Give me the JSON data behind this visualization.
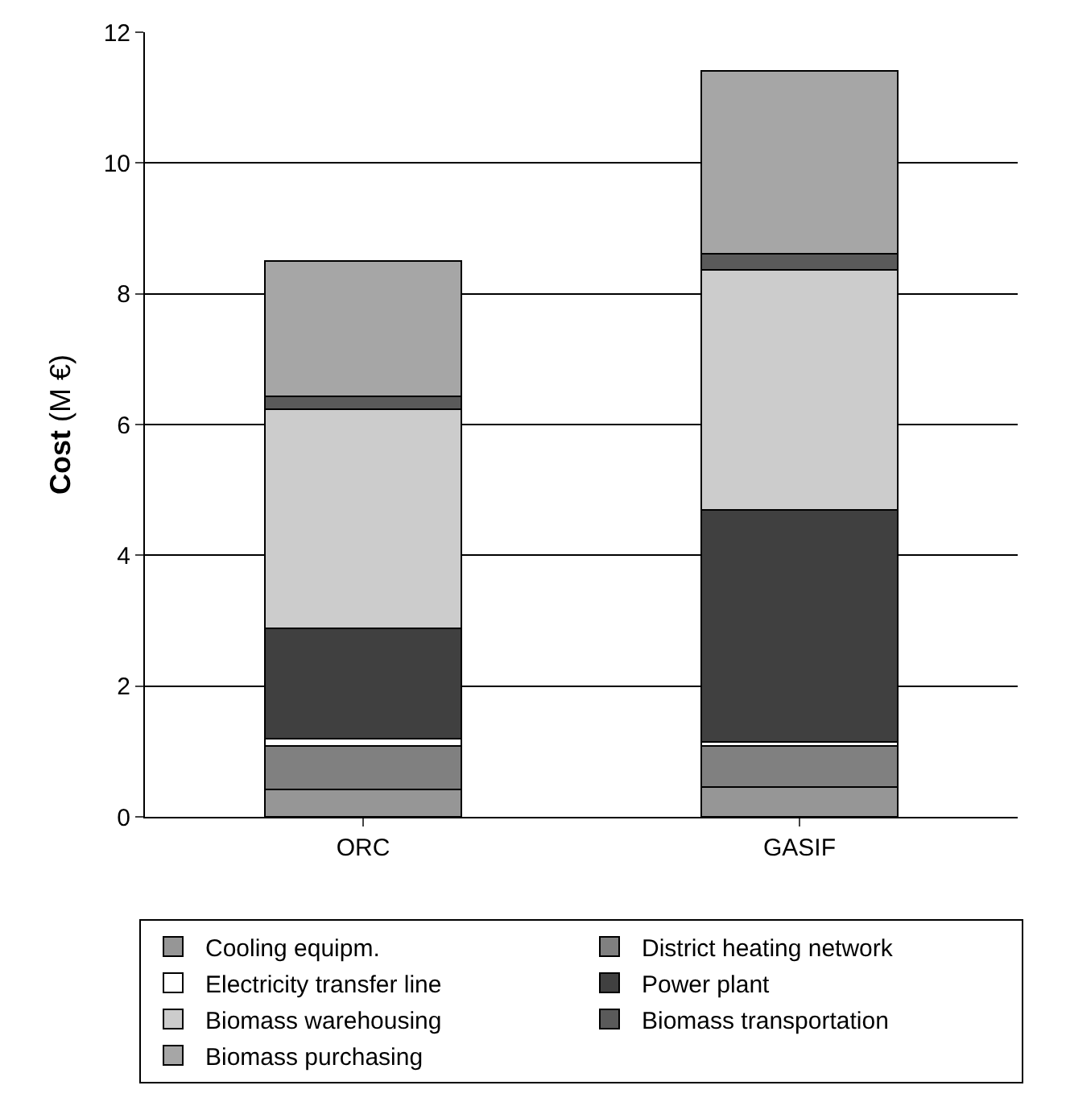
{
  "chart_data": {
    "type": "bar",
    "stacked": true,
    "categories": [
      "ORC",
      "GASIF"
    ],
    "ylabel": "Cost (M €)",
    "ylim": [
      0,
      12
    ],
    "yticks": [
      0,
      2,
      4,
      6,
      8,
      10,
      12
    ],
    "grid": "y",
    "legend": "bottom",
    "series": [
      {
        "name": "Cooling equipm.",
        "color": "#969696",
        "values": [
          0.42,
          0.45
        ]
      },
      {
        "name": "District heating network",
        "color": "#808080",
        "values": [
          0.66,
          0.63
        ]
      },
      {
        "name": "Electricity transfer line",
        "color": "#ffffff",
        "values": [
          0.11,
          0.07
        ]
      },
      {
        "name": "Power plant",
        "color": "#404040",
        "values": [
          1.69,
          3.55
        ]
      },
      {
        "name": "Biomass warehousing",
        "color": "#cccccc",
        "values": [
          3.35,
          3.66
        ]
      },
      {
        "name": "Biomass transportation",
        "color": "#5a5a5a",
        "values": [
          0.2,
          0.25
        ]
      },
      {
        "name": "Biomass purchasing",
        "color": "#a6a6a6",
        "values": [
          2.07,
          2.8
        ]
      }
    ]
  }
}
